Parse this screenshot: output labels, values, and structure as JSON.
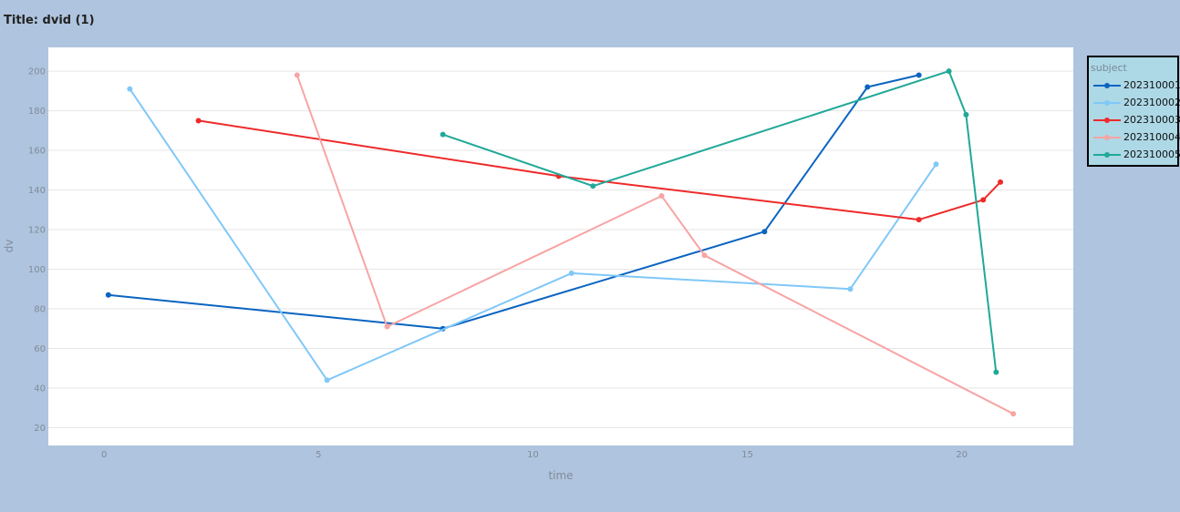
{
  "page": {
    "title": "Title: dvid (1)"
  },
  "chart_data": {
    "type": "line",
    "xlabel": "time",
    "ylabel": "dv",
    "xlim": [
      -1.3,
      22.6
    ],
    "ylim": [
      11,
      212
    ],
    "x_ticks": [
      0,
      5,
      10,
      15,
      20
    ],
    "y_ticks": [
      20,
      40,
      60,
      80,
      100,
      120,
      140,
      160,
      180,
      200
    ],
    "grid": true,
    "legend_title": "subject",
    "legend_placement": "right",
    "series": [
      {
        "name": "202310001",
        "color": "#0a64c0",
        "x": [
          0.1,
          7.9,
          15.4,
          17.8,
          19.0
        ],
        "y": [
          87,
          70,
          119,
          192,
          198
        ]
      },
      {
        "name": "202310002",
        "color": "#80c8f8",
        "x": [
          0.6,
          5.2,
          10.9,
          17.4,
          19.4
        ],
        "y": [
          191,
          44,
          98,
          90,
          153
        ]
      },
      {
        "name": "202310003",
        "color": "#ee2a2a",
        "x": [
          2.2,
          10.6,
          19.0,
          20.5,
          20.9
        ],
        "y": [
          175,
          147,
          125,
          135,
          144
        ]
      },
      {
        "name": "202310004",
        "color": "#f8a4a4",
        "x": [
          4.5,
          6.6,
          13.0,
          14.0,
          21.2
        ],
        "y": [
          198,
          71,
          137,
          107,
          27
        ]
      },
      {
        "name": "202310005",
        "color": "#20a898",
        "x": [
          7.9,
          11.4,
          19.7,
          20.1,
          20.8
        ],
        "y": [
          168,
          142,
          200,
          178,
          48
        ]
      }
    ]
  }
}
